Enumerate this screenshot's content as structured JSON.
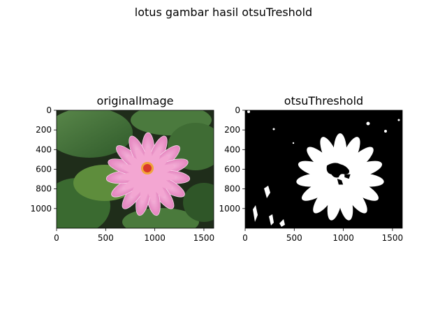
{
  "figure": {
    "suptitle": "lotus gambar hasil otsuTreshold"
  },
  "chart_data": [
    {
      "type": "image",
      "title": "originalImage",
      "image_width": 1600,
      "image_height": 1200,
      "x_ticks": [
        0,
        500,
        1000,
        1500
      ],
      "y_ticks": [
        0,
        200,
        400,
        600,
        800,
        1000
      ],
      "content": "pink-lotus-on-green-leaves"
    },
    {
      "type": "image",
      "title": "otsuThreshold",
      "image_width": 1600,
      "image_height": 1200,
      "x_ticks": [
        0,
        500,
        1000,
        1500
      ],
      "y_ticks": [
        0,
        200,
        400,
        600,
        800,
        1000
      ],
      "content": "binary-lotus-mask",
      "colors": {
        "foreground": "#ffffff",
        "background": "#000000"
      }
    }
  ]
}
